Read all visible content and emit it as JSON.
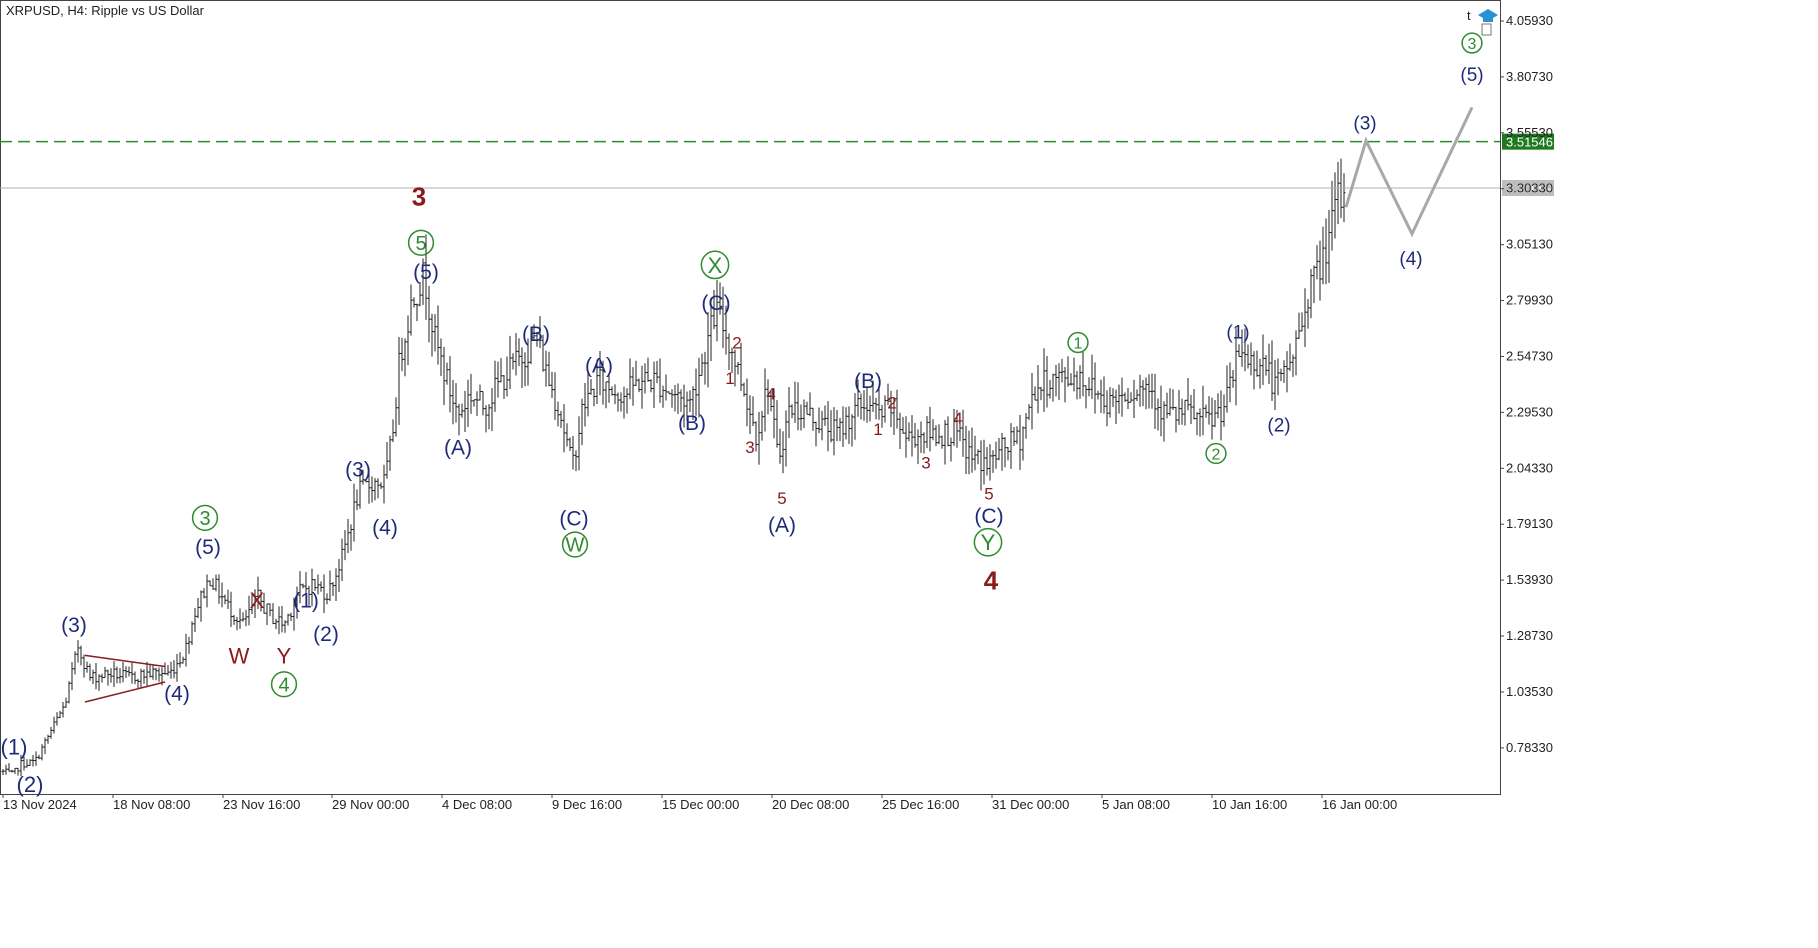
{
  "window": {
    "title": "XRPUSD, H4:  Ripple vs US Dollar"
  },
  "chart_data": {
    "type": "candlestick",
    "symbol": "XRPUSD",
    "timeframe": "H4",
    "description": "Ripple vs US Dollar",
    "ylim": [
      0.59,
      4.16
    ],
    "y_ticks": [
      "4.05930",
      "3.80730",
      "3.55530",
      "3.30330",
      "3.05130",
      "2.79930",
      "2.54730",
      "2.29530",
      "2.04330",
      "1.79130",
      "1.53930",
      "1.28730",
      "1.03530",
      "0.78330"
    ],
    "x_ticks": [
      "13 Nov 2024",
      "18 Nov 08:00",
      "23 Nov 16:00",
      "29 Nov 00:00",
      "4 Dec 08:00",
      "9 Dec 16:00",
      "15 Dec 00:00",
      "20 Dec 08:00",
      "25 Dec 16:00",
      "31 Dec 00:00",
      "5 Jan 08:00",
      "10 Jan 16:00",
      "16 Jan 00:00"
    ],
    "price_lines": [
      {
        "label": "3.51546",
        "value": 3.51546,
        "style": "dashed",
        "color": "#2e8b2e"
      },
      {
        "label": "3.30659",
        "value": 3.30659,
        "style": "solid",
        "color": "#b0b0b0"
      }
    ],
    "price_path": [
      [
        0,
        0.68
      ],
      [
        13,
        0.66
      ],
      [
        20,
        0.71
      ],
      [
        35,
        0.72
      ],
      [
        50,
        0.85
      ],
      [
        65,
        0.98
      ],
      [
        78,
        1.24
      ],
      [
        90,
        1.1
      ],
      [
        110,
        1.12
      ],
      [
        130,
        1.1
      ],
      [
        150,
        1.12
      ],
      [
        170,
        1.12
      ],
      [
        185,
        1.22
      ],
      [
        195,
        1.4
      ],
      [
        210,
        1.55
      ],
      [
        228,
        1.42
      ],
      [
        243,
        1.34
      ],
      [
        258,
        1.46
      ],
      [
        270,
        1.38
      ],
      [
        284,
        1.34
      ],
      [
        298,
        1.48
      ],
      [
        312,
        1.52
      ],
      [
        328,
        1.48
      ],
      [
        342,
        1.64
      ],
      [
        358,
        1.93
      ],
      [
        372,
        1.98
      ],
      [
        385,
        1.98
      ],
      [
        392,
        2.18
      ],
      [
        400,
        2.55
      ],
      [
        412,
        2.8
      ],
      [
        424,
        2.92
      ],
      [
        435,
        2.62
      ],
      [
        448,
        2.42
      ],
      [
        458,
        2.28
      ],
      [
        470,
        2.38
      ],
      [
        484,
        2.32
      ],
      [
        498,
        2.42
      ],
      [
        512,
        2.5
      ],
      [
        525,
        2.56
      ],
      [
        536,
        2.64
      ],
      [
        548,
        2.45
      ],
      [
        560,
        2.3
      ],
      [
        572,
        2.05
      ],
      [
        583,
        2.32
      ],
      [
        598,
        2.44
      ],
      [
        612,
        2.4
      ],
      [
        625,
        2.38
      ],
      [
        640,
        2.44
      ],
      [
        655,
        2.44
      ],
      [
        672,
        2.38
      ],
      [
        690,
        2.34
      ],
      [
        702,
        2.52
      ],
      [
        716,
        2.76
      ],
      [
        730,
        2.6
      ],
      [
        744,
        2.4
      ],
      [
        756,
        2.2
      ],
      [
        768,
        2.42
      ],
      [
        778,
        2.08
      ],
      [
        790,
        2.32
      ],
      [
        805,
        2.3
      ],
      [
        822,
        2.24
      ],
      [
        838,
        2.2
      ],
      [
        850,
        2.28
      ],
      [
        866,
        2.34
      ],
      [
        880,
        2.28
      ],
      [
        892,
        2.32
      ],
      [
        906,
        2.18
      ],
      [
        920,
        2.2
      ],
      [
        934,
        2.2
      ],
      [
        956,
        2.2
      ],
      [
        970,
        2.1
      ],
      [
        988,
        2.06
      ],
      [
        1005,
        2.14
      ],
      [
        1020,
        2.18
      ],
      [
        1035,
        2.4
      ],
      [
        1050,
        2.44
      ],
      [
        1065,
        2.45
      ],
      [
        1080,
        2.46
      ],
      [
        1094,
        2.4
      ],
      [
        1108,
        2.34
      ],
      [
        1122,
        2.38
      ],
      [
        1136,
        2.4
      ],
      [
        1150,
        2.42
      ],
      [
        1162,
        2.3
      ],
      [
        1175,
        2.28
      ],
      [
        1188,
        2.3
      ],
      [
        1200,
        2.26
      ],
      [
        1212,
        2.26
      ],
      [
        1226,
        2.34
      ],
      [
        1240,
        2.58
      ],
      [
        1252,
        2.52
      ],
      [
        1264,
        2.52
      ],
      [
        1276,
        2.4
      ],
      [
        1290,
        2.52
      ],
      [
        1300,
        2.66
      ],
      [
        1310,
        2.88
      ],
      [
        1318,
        2.92
      ],
      [
        1330,
        3.1
      ],
      [
        1338,
        3.26
      ],
      [
        1346,
        3.22
      ]
    ],
    "projection": [
      [
        1346,
        3.22
      ],
      [
        1366,
        3.52
      ],
      [
        1412,
        3.1
      ],
      [
        1472,
        3.67
      ]
    ],
    "triangle": [
      [
        [
          85,
          1.2
        ],
        [
          165,
          1.15
        ]
      ],
      [
        [
          85,
          0.99
        ],
        [
          165,
          1.08
        ]
      ]
    ],
    "wave_labels": [
      {
        "t": "(1)",
        "x": 14,
        "p": 0.79,
        "c": "#1f2a7a",
        "s": 22
      },
      {
        "t": "(2)",
        "x": 30,
        "p": 0.62,
        "c": "#1f2a7a",
        "s": 22
      },
      {
        "t": "(3)",
        "x": 74,
        "p": 1.34,
        "c": "#1f2a7a",
        "s": 21
      },
      {
        "t": "(4)",
        "x": 177,
        "p": 1.03,
        "c": "#1f2a7a",
        "s": 21
      },
      {
        "t": "3",
        "x": 205,
        "p": 1.82,
        "c": "#2e8b2e",
        "s": 20,
        "circle": true
      },
      {
        "t": "(5)",
        "x": 208,
        "p": 1.69,
        "c": "#1f2a7a",
        "s": 21
      },
      {
        "t": "X",
        "x": 257,
        "p": 1.45,
        "c": "#8b1a1a",
        "s": 22
      },
      {
        "t": "W",
        "x": 239,
        "p": 1.2,
        "c": "#8b1a1a",
        "s": 22
      },
      {
        "t": "Y",
        "x": 284,
        "p": 1.2,
        "c": "#8b1a1a",
        "s": 22
      },
      {
        "t": "4",
        "x": 284,
        "p": 1.07,
        "c": "#2e8b2e",
        "s": 20,
        "circle": true
      },
      {
        "t": "(1)",
        "x": 306,
        "p": 1.45,
        "c": "#1f2a7a",
        "s": 21
      },
      {
        "t": "(2)",
        "x": 326,
        "p": 1.3,
        "c": "#1f2a7a",
        "s": 21
      },
      {
        "t": "(3)",
        "x": 358,
        "p": 2.04,
        "c": "#1f2a7a",
        "s": 21
      },
      {
        "t": "(4)",
        "x": 385,
        "p": 1.78,
        "c": "#1f2a7a",
        "s": 21
      },
      {
        "t": "3",
        "x": 419,
        "p": 3.27,
        "c": "#8b1a1a",
        "s": 26,
        "bold": true
      },
      {
        "t": "5",
        "x": 421,
        "p": 3.06,
        "c": "#2e8b2e",
        "s": 20,
        "circle": true
      },
      {
        "t": "(5)",
        "x": 426,
        "p": 2.93,
        "c": "#1f2a7a",
        "s": 21
      },
      {
        "t": "(A)",
        "x": 458,
        "p": 2.14,
        "c": "#1f2a7a",
        "s": 21
      },
      {
        "t": "(B)",
        "x": 536,
        "p": 2.65,
        "c": "#1f2a7a",
        "s": 21
      },
      {
        "t": "(A)",
        "x": 599,
        "p": 2.51,
        "c": "#1f2a7a",
        "s": 21
      },
      {
        "t": "(C)",
        "x": 574,
        "p": 1.82,
        "c": "#1f2a7a",
        "s": 21
      },
      {
        "t": "W",
        "x": 575,
        "p": 1.7,
        "c": "#2e8b2e",
        "s": 20,
        "circle": true
      },
      {
        "t": "X",
        "x": 715,
        "p": 2.96,
        "c": "#2e8b2e",
        "s": 22,
        "circle": true
      },
      {
        "t": "(C)",
        "x": 716,
        "p": 2.79,
        "c": "#1f2a7a",
        "s": 21
      },
      {
        "t": "(B)",
        "x": 692,
        "p": 2.25,
        "c": "#1f2a7a",
        "s": 21
      },
      {
        "t": "2",
        "x": 737,
        "p": 2.61,
        "c": "#8b1a1a",
        "s": 17
      },
      {
        "t": "1",
        "x": 730,
        "p": 2.45,
        "c": "#8b1a1a",
        "s": 17
      },
      {
        "t": "4",
        "x": 771,
        "p": 2.38,
        "c": "#8b1a1a",
        "s": 17
      },
      {
        "t": "3",
        "x": 750,
        "p": 2.14,
        "c": "#8b1a1a",
        "s": 17
      },
      {
        "t": "5",
        "x": 782,
        "p": 1.91,
        "c": "#8b1a1a",
        "s": 17
      },
      {
        "t": "(A)",
        "x": 782,
        "p": 1.79,
        "c": "#1f2a7a",
        "s": 21
      },
      {
        "t": "(B)",
        "x": 868,
        "p": 2.44,
        "c": "#1f2a7a",
        "s": 21
      },
      {
        "t": "2",
        "x": 892,
        "p": 2.34,
        "c": "#8b1a1a",
        "s": 17
      },
      {
        "t": "1",
        "x": 878,
        "p": 2.22,
        "c": "#8b1a1a",
        "s": 17
      },
      {
        "t": "4",
        "x": 958,
        "p": 2.27,
        "c": "#8b1a1a",
        "s": 17
      },
      {
        "t": "3",
        "x": 926,
        "p": 2.07,
        "c": "#8b1a1a",
        "s": 17
      },
      {
        "t": "5",
        "x": 989,
        "p": 1.93,
        "c": "#8b1a1a",
        "s": 17
      },
      {
        "t": "(C)",
        "x": 989,
        "p": 1.83,
        "c": "#1f2a7a",
        "s": 21
      },
      {
        "t": "Y",
        "x": 988,
        "p": 1.71,
        "c": "#2e8b2e",
        "s": 22,
        "circle": true
      },
      {
        "t": "4",
        "x": 991,
        "p": 1.54,
        "c": "#8b1a1a",
        "s": 26,
        "bold": true
      },
      {
        "t": "1",
        "x": 1078,
        "p": 2.61,
        "c": "#2e8b2e",
        "s": 16,
        "circle": true
      },
      {
        "t": "(1)",
        "x": 1238,
        "p": 2.66,
        "c": "#1f2a7a",
        "s": 19
      },
      {
        "t": "(2)",
        "x": 1279,
        "p": 2.24,
        "c": "#1f2a7a",
        "s": 19
      },
      {
        "t": "2",
        "x": 1216,
        "p": 2.11,
        "c": "#2e8b2e",
        "s": 16,
        "circle": true
      },
      {
        "t": "(3)",
        "x": 1365,
        "p": 3.6,
        "c": "#1f2a7a",
        "s": 19
      },
      {
        "t": "(4)",
        "x": 1411,
        "p": 2.99,
        "c": "#1f2a7a",
        "s": 19
      },
      {
        "t": "3",
        "x": 1472,
        "p": 3.96,
        "c": "#2e8b2e",
        "s": 16,
        "circle": true
      },
      {
        "t": "(5)",
        "x": 1472,
        "p": 3.82,
        "c": "#1f2a7a",
        "s": 19
      }
    ]
  }
}
